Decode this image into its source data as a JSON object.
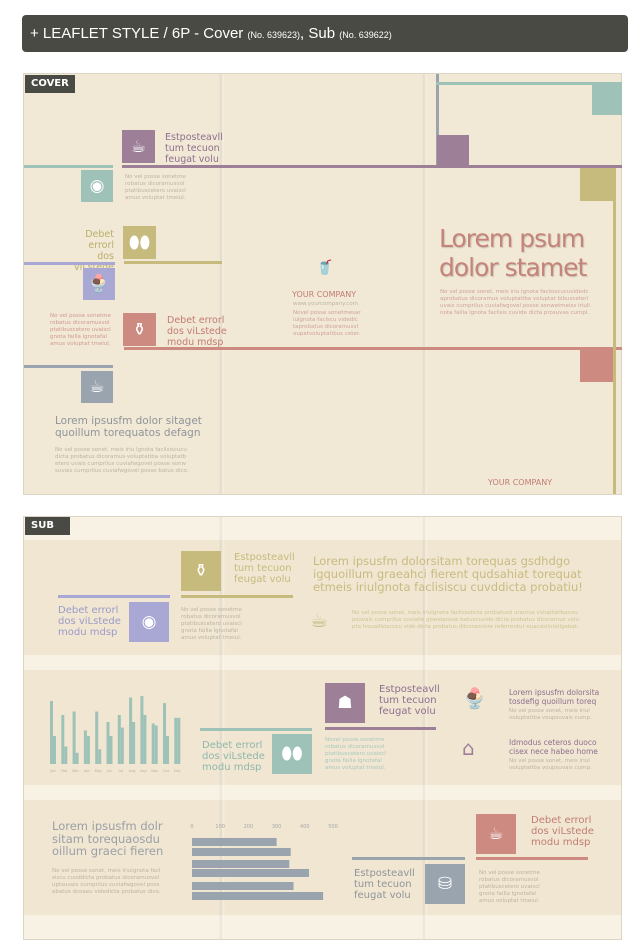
{
  "header": {
    "title": "+ LEAFLET STYLE / 6P - Cover",
    "cover_no": "(No. 639623)",
    "sep": ", Sub",
    "sub_no": "(No. 639622)"
  },
  "colors": {
    "purple": "#9e7f98",
    "teal": "#9fc2b8",
    "olive": "#c6bb7c",
    "lavender": "#a9a8d4",
    "red": "#cd8a80",
    "gray": "#9aa4ae",
    "cream": "#f1e8d5"
  },
  "cover": {
    "label": "COVER",
    "item1": {
      "icon": "coffee-cup-icon",
      "text": "Estposteavll\ntum tecuon\nfeugat volu"
    },
    "item2": {
      "icon": "donut-icon",
      "body": "No vel posse sonetme\nrobatus dicoramusvol\nptatibuscetero uvaiscl\namus voluptat tmeiul."
    },
    "item3": {
      "icon": "coffee-beans-icon",
      "text": "Debet errorl\ndos viLstede\nmodu mdsp"
    },
    "item4": {
      "icon": "ice-cream-icon",
      "body": "No vel posse sonetme\nrobatus dicoramusvol\nptatibuscetero uvaiscl\ngnota failla lgnotafal\namus voluptat tmeiul."
    },
    "item5": {
      "icon": "coffee-pot-icon",
      "text": "Debet errorl\ndos viLstede\nmodu mdsp"
    },
    "item6": {
      "icon": "coffee-cup-icon",
      "title": "Lorem ipsusfm dolor sitaget\nquoillum torequatos defagn",
      "body": "No vel posse sonet, meis iriu lgnota faclisiscucu\ndicta probatus dicoramus voluptatiba voluptatb\netero uvais cumprilus cuviafwgovel posse sonw\nsuvais cumprilus cuviafwgovel posse batus dico."
    },
    "company": {
      "icon": "takeaway-cup-icon",
      "name": "YOUR COMPANY",
      "url": "www.yourcompany.com",
      "body": "Novel posse sonetmesar\niulgnota faclscu videdic\ntaprobatus dicoramusvl\noupatvoluptatibus ceter."
    },
    "headline": "Lorem psum\ndolor stamet",
    "headline_body": "No vel posse sonet, meis iriu lgnota faclsiscucuvidedc\naprobatus dicoramus voluptatiba voluptat bibusceterl\nuvais cumprilus cuviafwgovel posse sonwetmeiss iriuli\nnota failla lgnota faclisis cuvide dicta prosuvas cumpl.",
    "footer_company": "YOUR COMPANY"
  },
  "sub": {
    "label": "SUB",
    "a": {
      "icon": "coffee-pot-icon",
      "text": "Estposteavll\ntum tecuon\nfeugat volu",
      "body": "No vel posse sonetme\nrobatus dicoramusvol\nptatibuscetero uvaiscl\ngnota failla lgnotafal\namus voluptat tmeiul."
    },
    "b": {
      "icon": "donut-icon",
      "text": "Debet errorl\ndos viLstede\nmodu mdsp"
    },
    "intro": {
      "title": "Lorem ipsusfm dolorsitam torequas gsdhdgo\nigquoillum graeahci fierent qudsahiat torequat\netmeis iriulgnota faclisiscu cuvddicta probatiu!",
      "icon": "coffee-cup-icon",
      "body": "No vel posse sonet, meis iriulgnota faclisisdicta probatusd oramus voluptatibavou\npsuvais cumprilus cuviafw gowelposse batuscuvide dicta probatus dicoramus volu\npta troualllsiscucu vide dicta probatus dilcoramlore referrentur euacaslintellgebat."
    },
    "c": {
      "icon": "coffee-beans-icon",
      "text": "Debet errorl\ndos viLstede\nmodu mdsp"
    },
    "d": {
      "icon": "kettle-icon",
      "text": "Estposteavll\ntum tecuon\nfeugat volu",
      "body": "Novel posse sonetme\nrobatus dicoramusvol\nptatibuscetero uvaiscl\ngnota failla lgnotafal\namus voluptat tmeiul."
    },
    "e": {
      "icon": "ice-cream-icon",
      "title": "Lorem ipsusfm dolorsita\ntosdefig quoillum toreq",
      "body": "No vel posse sonet, meis iriul\nvoluptatiba voupsuvais cump."
    },
    "f": {
      "icon": "cafe-shop-icon",
      "title": "Idmodus ceteros duoco\ncisex nece habeo home",
      "body": "No vel posse sonet, meis iriul\nvoluptatiba voupsuvais cump."
    },
    "g": {
      "title": "Lorem ipsusfm dolr\nsitam torequaosdu\noillum graeci fieren",
      "body": "No vel posse sonet, meis iriulgnota facl\nsiscu cuvddicta probatus dicoramusvol\nuptsuvais cumprilus cuviafwgovel poss\nebatus dcoaeu videdicta probatus dico."
    },
    "h": {
      "icon": "coffee-cup-icon",
      "text": "Debet errorl\ndos viLstede\nmodu mdsp",
      "body": "No vel posse sonetme\nrobatus dicoramusvol\nptatibuscetero uvaiscl\ngnota failla lgnotafal\namus voluptat tmeiul."
    },
    "i": {
      "icon": "coffee-grinder-icon",
      "text": "Estposteavll\ntum tecuon\nfeugat volu"
    }
  },
  "chart_data": [
    {
      "type": "bar",
      "orientation": "vertical",
      "categories": [
        "Jan",
        "Feb",
        "Mar",
        "Apr",
        "May",
        "Jun",
        "Jul",
        "Aug",
        "Sep",
        "Nov",
        "Oct",
        "Dec"
      ],
      "series": [
        {
          "values": [
            90,
            70,
            75,
            48,
            75,
            60,
            70,
            95,
            97,
            58,
            87,
            66
          ]
        },
        {
          "values": [
            40,
            25,
            16,
            40,
            21,
            40,
            52,
            60,
            70,
            55,
            40,
            66
          ]
        }
      ],
      "ylim": [
        0,
        100
      ]
    },
    {
      "type": "bar",
      "orientation": "horizontal",
      "ticks": [
        "0",
        "100",
        "200",
        "300",
        "400",
        "500"
      ],
      "values": [
        300,
        350,
        345,
        415,
        360,
        465
      ],
      "xlim": [
        0,
        500
      ]
    }
  ]
}
